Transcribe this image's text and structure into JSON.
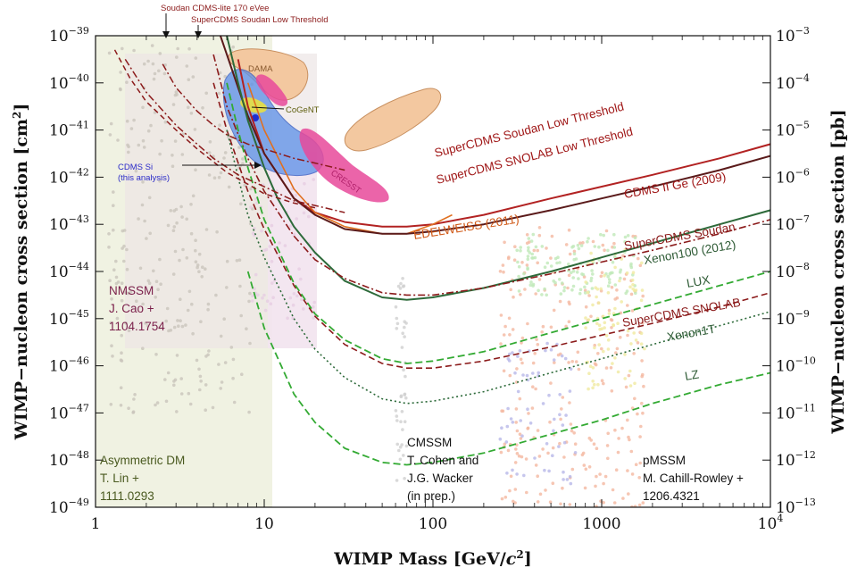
{
  "chart_data": {
    "type": "line",
    "xscale": "log",
    "yscale": "log",
    "xlim": [
      1,
      10000
    ],
    "ylim": [
      1e-49,
      1e-39
    ],
    "y2lim": [
      1e-13,
      0.001
    ],
    "grid": false,
    "xlabel": "WIMP Mass [GeV/c²]",
    "ylabel": "WIMP−nucleon cross section [cm²]",
    "y2label": "WIMP−nucleon cross section [pb]",
    "x_ticks": [
      {
        "value": 1,
        "label": "1"
      },
      {
        "value": 10,
        "label": "10"
      },
      {
        "value": 100,
        "label": "100"
      },
      {
        "value": 1000,
        "label": "1000"
      },
      {
        "value": 10000,
        "label": "10",
        "sup": "4"
      }
    ],
    "y_ticks": [
      {
        "value": -39,
        "label": "10",
        "sup": "−39"
      },
      {
        "value": -40,
        "label": "10",
        "sup": "−40"
      },
      {
        "value": -41,
        "label": "10",
        "sup": "−41"
      },
      {
        "value": -42,
        "label": "10",
        "sup": "−42"
      },
      {
        "value": -43,
        "label": "10",
        "sup": "−43"
      },
      {
        "value": -44,
        "label": "10",
        "sup": "−44"
      },
      {
        "value": -45,
        "label": "10",
        "sup": "−45"
      },
      {
        "value": -46,
        "label": "10",
        "sup": "−46"
      },
      {
        "value": -47,
        "label": "10",
        "sup": "−47"
      },
      {
        "value": -48,
        "label": "10",
        "sup": "−48"
      },
      {
        "value": -49,
        "label": "10",
        "sup": "−49"
      }
    ],
    "y2_ticks": [
      {
        "value": -39,
        "label": "10",
        "sup": "−3"
      },
      {
        "value": -40,
        "label": "10",
        "sup": "−4"
      },
      {
        "value": -41,
        "label": "10",
        "sup": "−5"
      },
      {
        "value": -42,
        "label": "10",
        "sup": "−6"
      },
      {
        "value": -43,
        "label": "10",
        "sup": "−7"
      },
      {
        "value": -44,
        "label": "10",
        "sup": "−8"
      },
      {
        "value": -45,
        "label": "10",
        "sup": "−9"
      },
      {
        "value": -46,
        "label": "10",
        "sup": "−10"
      },
      {
        "value": -47,
        "label": "10",
        "sup": "−11"
      },
      {
        "value": -48,
        "label": "10",
        "sup": "−12"
      },
      {
        "value": -49,
        "label": "10",
        "sup": "−13"
      }
    ],
    "series": [
      {
        "name": "CDMS II Ge (2009)",
        "color": "#b22222",
        "dash": "solid",
        "width": 2,
        "x": [
          7,
          8,
          10,
          15,
          20,
          30,
          50,
          70,
          100,
          200,
          500,
          1000,
          2000,
          5000,
          10000
        ],
        "y": [
          -39.5,
          -40.5,
          -41.5,
          -42.45,
          -42.75,
          -42.95,
          -43.05,
          -43.05,
          -43.0,
          -42.8,
          -42.45,
          -42.2,
          -41.95,
          -41.6,
          -41.3
        ]
      },
      {
        "name": "EDELWEISS (2011)",
        "color": "#e07020",
        "dash": "solid",
        "width": 1.6,
        "x": [
          8,
          10,
          15,
          20,
          30,
          50,
          70,
          100,
          130
        ],
        "y": [
          -40.0,
          -41.0,
          -42.25,
          -42.75,
          -43.05,
          -43.2,
          -43.2,
          -43.0,
          -42.8
        ]
      },
      {
        "name": "SuperCDMS Soudan",
        "color": "#5a1a1a",
        "dash": "solid",
        "width": 2,
        "x": [
          5.5,
          6,
          7,
          8,
          10,
          15,
          20,
          30,
          50,
          70,
          100,
          200,
          500,
          1000,
          2000,
          5000,
          10000
        ],
        "y": [
          -39.0,
          -39.4,
          -40.1,
          -40.7,
          -41.5,
          -42.45,
          -42.8,
          -43.1,
          -43.2,
          -43.2,
          -43.15,
          -43.0,
          -42.7,
          -42.45,
          -42.2,
          -41.85,
          -41.55
        ]
      },
      {
        "name": "Xenon100 (2012)",
        "color": "#2d6a3a",
        "dash": "solid",
        "width": 2,
        "x": [
          6,
          7,
          8,
          10,
          12,
          15,
          20,
          30,
          50,
          70,
          100,
          200,
          500,
          1000,
          2000,
          5000,
          10000
        ],
        "y": [
          -39.0,
          -40.0,
          -40.8,
          -41.8,
          -42.45,
          -43.05,
          -43.6,
          -44.2,
          -44.55,
          -44.6,
          -44.55,
          -44.35,
          -44.0,
          -43.7,
          -43.4,
          -43.0,
          -42.7
        ]
      },
      {
        "name": "SuperCDMS Low Threshold (dash-dot)",
        "color": "#8b1a1a",
        "dash": "8,3,2,3",
        "width": 1.6,
        "x": [
          5,
          6,
          8,
          10,
          15,
          20,
          30,
          50,
          70,
          100,
          200,
          500,
          1000,
          2000,
          5000,
          10000
        ],
        "y": [
          -39.4,
          -40.5,
          -41.6,
          -42.3,
          -43.25,
          -43.75,
          -44.15,
          -44.45,
          -44.5,
          -44.5,
          -44.35,
          -44.05,
          -43.8,
          -43.55,
          -43.2,
          -42.9
        ]
      },
      {
        "name": "SuperCDMS SNOLAB",
        "color": "#8b1a1a",
        "dash": "7,4",
        "width": 1.6,
        "x": [
          5,
          6,
          8,
          10,
          15,
          20,
          30,
          50,
          70,
          100,
          200,
          500,
          1000,
          2000,
          5000,
          10000
        ],
        "y": [
          -40.0,
          -41.0,
          -42.3,
          -43.1,
          -44.3,
          -44.95,
          -45.55,
          -45.95,
          -46.05,
          -46.05,
          -45.9,
          -45.6,
          -45.35,
          -45.1,
          -44.75,
          -44.45
        ]
      },
      {
        "name": "LUX",
        "color": "#33aa33",
        "dash": "8,4",
        "width": 1.8,
        "x": [
          6,
          7,
          8,
          10,
          15,
          20,
          30,
          50,
          70,
          100,
          200,
          500,
          1000,
          2000,
          5000,
          10000
        ],
        "y": [
          -40.0,
          -41.0,
          -41.8,
          -42.9,
          -44.25,
          -44.9,
          -45.45,
          -45.85,
          -45.95,
          -45.9,
          -45.7,
          -45.3,
          -45.0,
          -44.7,
          -44.3,
          -44.0
        ]
      },
      {
        "name": "Xenon1T",
        "color": "#2d6a3a",
        "dash": "2,3",
        "width": 1.6,
        "x": [
          6,
          7,
          8,
          10,
          15,
          20,
          30,
          50,
          70,
          100,
          200,
          500,
          1000,
          2000,
          5000,
          10000
        ],
        "y": [
          -41.0,
          -42.0,
          -42.8,
          -43.7,
          -45.0,
          -45.65,
          -46.25,
          -46.7,
          -46.8,
          -46.75,
          -46.55,
          -46.15,
          -45.85,
          -45.55,
          -45.15,
          -44.85
        ]
      },
      {
        "name": "LZ",
        "color": "#33aa33",
        "dash": "8,4",
        "width": 1.8,
        "x": [
          8,
          10,
          15,
          20,
          30,
          50,
          70,
          100,
          200,
          500,
          1000,
          2000,
          5000,
          10000
        ],
        "y": [
          -44.0,
          -45.2,
          -46.6,
          -47.2,
          -47.75,
          -48.05,
          -48.1,
          -48.05,
          -47.85,
          -47.45,
          -47.15,
          -46.8,
          -46.4,
          -46.15
        ]
      },
      {
        "name": "SuperCDMS Soudan Low Threshold (upper dash-dot)",
        "color": "#8b1a1a",
        "dash": "8,3,2,3",
        "width": 1.5,
        "x": [
          2.5,
          3,
          4,
          5,
          6,
          8,
          10,
          15,
          20,
          30
        ],
        "y": [
          -39.6,
          -40.1,
          -40.6,
          -40.9,
          -41.1,
          -41.3,
          -41.4,
          -41.6,
          -41.7,
          -41.85
        ]
      },
      {
        "name": "SuperCDMS SNOLAB Low Threshold (dash-dot)",
        "color": "#8b1a1a",
        "dash": "8,3,2,3",
        "width": 1.5,
        "x": [
          1.5,
          2,
          3,
          4,
          5,
          7,
          10,
          15,
          20,
          30
        ],
        "y": [
          -39.5,
          -40.2,
          -40.9,
          -41.3,
          -41.6,
          -41.95,
          -42.2,
          -42.5,
          -42.6,
          -42.75
        ]
      },
      {
        "name": "Soudan CDMS-lite 170 eVee",
        "color": "#8b1a1a",
        "dash": "6,4",
        "width": 1.5,
        "x": [
          1.3,
          1.6,
          2,
          3,
          4,
          6,
          8,
          10,
          15,
          20
        ],
        "y": [
          -39.3,
          -39.9,
          -40.4,
          -41.0,
          -41.4,
          -41.9,
          -42.15,
          -42.35,
          -42.55,
          -42.65
        ]
      }
    ],
    "regions": [
      {
        "name": "CDMS Si",
        "color": "#3b6fe0"
      },
      {
        "name": "CoGeNT",
        "color": "#c8d840"
      },
      {
        "name": "CRESST",
        "color": "#e8499a"
      },
      {
        "name": "DAMA",
        "color": "#e8b080"
      }
    ],
    "labels": {
      "superCDMS_soudan_lt": "SuperCDMS Soudan Low Threshold",
      "superCDMS_snolab_lt": "SuperCDMS SNOLAB Low Threshold",
      "cdms2": "CDMS II Ge  (2009)",
      "edelweiss": "EDELWEISS (2011)",
      "superCDMS_soudan": "SuperCDMS Soudan",
      "xenon100": "Xenon100 (2012)",
      "lux": "LUX",
      "superCDMS_snolab": "SuperCDMS SNOLAB",
      "xenon1t": "Xenon1T",
      "lz": "LZ",
      "dama": "DAMA",
      "cogent": "CoGeNT",
      "cresst": "CRESST",
      "cdms_si_1": "CDMS Si",
      "cdms_si_2": "(this analysis)",
      "soudan_lite": "Soudan CDMS-lite 170 eVee",
      "supercdms_soudan_low_thr": "SuperCDMS Soudan Low Threshold",
      "nmssm_1": "NMSSM",
      "nmssm_2": "J. Cao +",
      "nmssm_3": "1104.1754",
      "asym_1": "Asymmetric DM",
      "asym_2": "T. Lin +",
      "asym_3": "1111.0293",
      "cmssm_1": "CMSSM",
      "cmssm_2": "T. Cohen and",
      "cmssm_3": "J.G. Wacker",
      "cmssm_4": "(in prep.)",
      "pmssm_1": "pMSSM",
      "pmssm_2": "M. Cahill-Rowley +",
      "pmssm_3": "1206.4321"
    }
  }
}
